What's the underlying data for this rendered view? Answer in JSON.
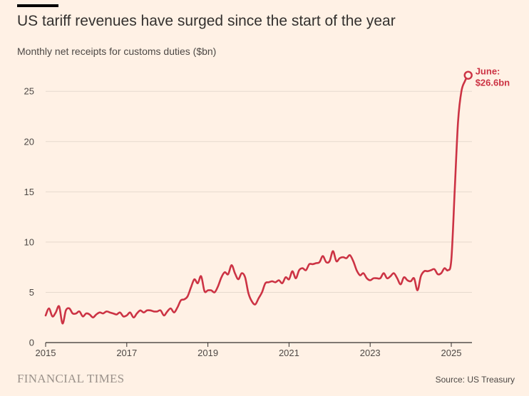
{
  "header": {
    "title": "US tariff revenues have surged since the start of the year",
    "subtitle": "Monthly net receipts for customs duties ($bn)"
  },
  "footer": {
    "logo": "FINANCIAL TIMES",
    "source": "Source: US Treasury"
  },
  "colors": {
    "background": "#FFF1E5",
    "line": "#CC3344",
    "grid": "#e6d9ce",
    "axis": "#33302E"
  },
  "chart_data": {
    "type": "line",
    "title": "",
    "xlabel": "",
    "ylabel": "",
    "ylim": [
      0,
      27
    ],
    "xlim": [
      "2015-01",
      "2025-06"
    ],
    "grid": true,
    "y_ticks": [
      "0",
      "5",
      "10",
      "15",
      "20",
      "25"
    ],
    "x_ticks": [
      "2015",
      "2017",
      "2019",
      "2021",
      "2023",
      "2025"
    ],
    "annotation": {
      "line1": "June:",
      "line2": "$26.6bn"
    },
    "series": [
      {
        "x": [
          "2015-01",
          "2015-02",
          "2015-03",
          "2015-04",
          "2015-05",
          "2015-06",
          "2015-07",
          "2015-08",
          "2015-09",
          "2015-10",
          "2015-11",
          "2015-12",
          "2016-01",
          "2016-02",
          "2016-03",
          "2016-04",
          "2016-05",
          "2016-06",
          "2016-07",
          "2016-08",
          "2016-09",
          "2016-10",
          "2016-11",
          "2016-12",
          "2017-01",
          "2017-02",
          "2017-03",
          "2017-04",
          "2017-05",
          "2017-06",
          "2017-07",
          "2017-08",
          "2017-09",
          "2017-10",
          "2017-11",
          "2017-12",
          "2018-01",
          "2018-02",
          "2018-03",
          "2018-04",
          "2018-05",
          "2018-06",
          "2018-07",
          "2018-08",
          "2018-09",
          "2018-10",
          "2018-11",
          "2018-12",
          "2019-01",
          "2019-02",
          "2019-03",
          "2019-04",
          "2019-05",
          "2019-06",
          "2019-07",
          "2019-08",
          "2019-09",
          "2019-10",
          "2019-11",
          "2019-12",
          "2020-01",
          "2020-02",
          "2020-03",
          "2020-04",
          "2020-05",
          "2020-06",
          "2020-07",
          "2020-08",
          "2020-09",
          "2020-10",
          "2020-11",
          "2020-12",
          "2021-01",
          "2021-02",
          "2021-03",
          "2021-04",
          "2021-05",
          "2021-06",
          "2021-07",
          "2021-08",
          "2021-09",
          "2021-10",
          "2021-11",
          "2021-12",
          "2022-01",
          "2022-02",
          "2022-03",
          "2022-04",
          "2022-05",
          "2022-06",
          "2022-07",
          "2022-08",
          "2022-09",
          "2022-10",
          "2022-11",
          "2022-12",
          "2023-01",
          "2023-02",
          "2023-03",
          "2023-04",
          "2023-05",
          "2023-06",
          "2023-07",
          "2023-08",
          "2023-09",
          "2023-10",
          "2023-11",
          "2023-12",
          "2024-01",
          "2024-02",
          "2024-03",
          "2024-04",
          "2024-05",
          "2024-06",
          "2024-07",
          "2024-08",
          "2024-09",
          "2024-10",
          "2024-11",
          "2024-12",
          "2025-01",
          "2025-02",
          "2025-03",
          "2025-04",
          "2025-05",
          "2025-06"
        ],
        "values": [
          2.7,
          3.4,
          2.6,
          3.0,
          3.6,
          1.9,
          3.2,
          3.4,
          2.9,
          2.9,
          3.1,
          2.6,
          2.9,
          2.8,
          2.5,
          2.8,
          3.0,
          2.9,
          3.1,
          3.0,
          2.9,
          2.8,
          3.0,
          2.6,
          2.7,
          3.0,
          2.5,
          2.9,
          3.2,
          3.0,
          3.2,
          3.2,
          3.1,
          3.1,
          3.2,
          2.7,
          3.1,
          3.4,
          3.0,
          3.5,
          4.2,
          4.3,
          4.6,
          5.5,
          6.3,
          5.9,
          6.6,
          5.1,
          5.2,
          5.2,
          5.0,
          5.6,
          6.5,
          7.0,
          6.8,
          7.7,
          6.9,
          6.3,
          6.9,
          6.5,
          4.9,
          4.1,
          3.8,
          4.4,
          5.0,
          5.9,
          6.0,
          6.1,
          6.0,
          6.2,
          5.9,
          6.5,
          6.3,
          7.1,
          6.4,
          7.2,
          7.4,
          7.2,
          7.8,
          7.8,
          7.9,
          8.0,
          8.6,
          8.0,
          8.1,
          9.1,
          8.1,
          8.4,
          8.5,
          8.4,
          8.7,
          8.1,
          7.2,
          6.7,
          6.9,
          6.4,
          6.2,
          6.4,
          6.4,
          6.4,
          6.9,
          6.4,
          6.6,
          6.9,
          6.4,
          5.8,
          6.5,
          6.2,
          6.1,
          6.4,
          5.2,
          6.6,
          7.1,
          7.1,
          7.2,
          7.3,
          6.8,
          6.9,
          7.4,
          7.2,
          8.2,
          15.0,
          22.0,
          25.0,
          26.0,
          26.6
        ]
      }
    ]
  }
}
